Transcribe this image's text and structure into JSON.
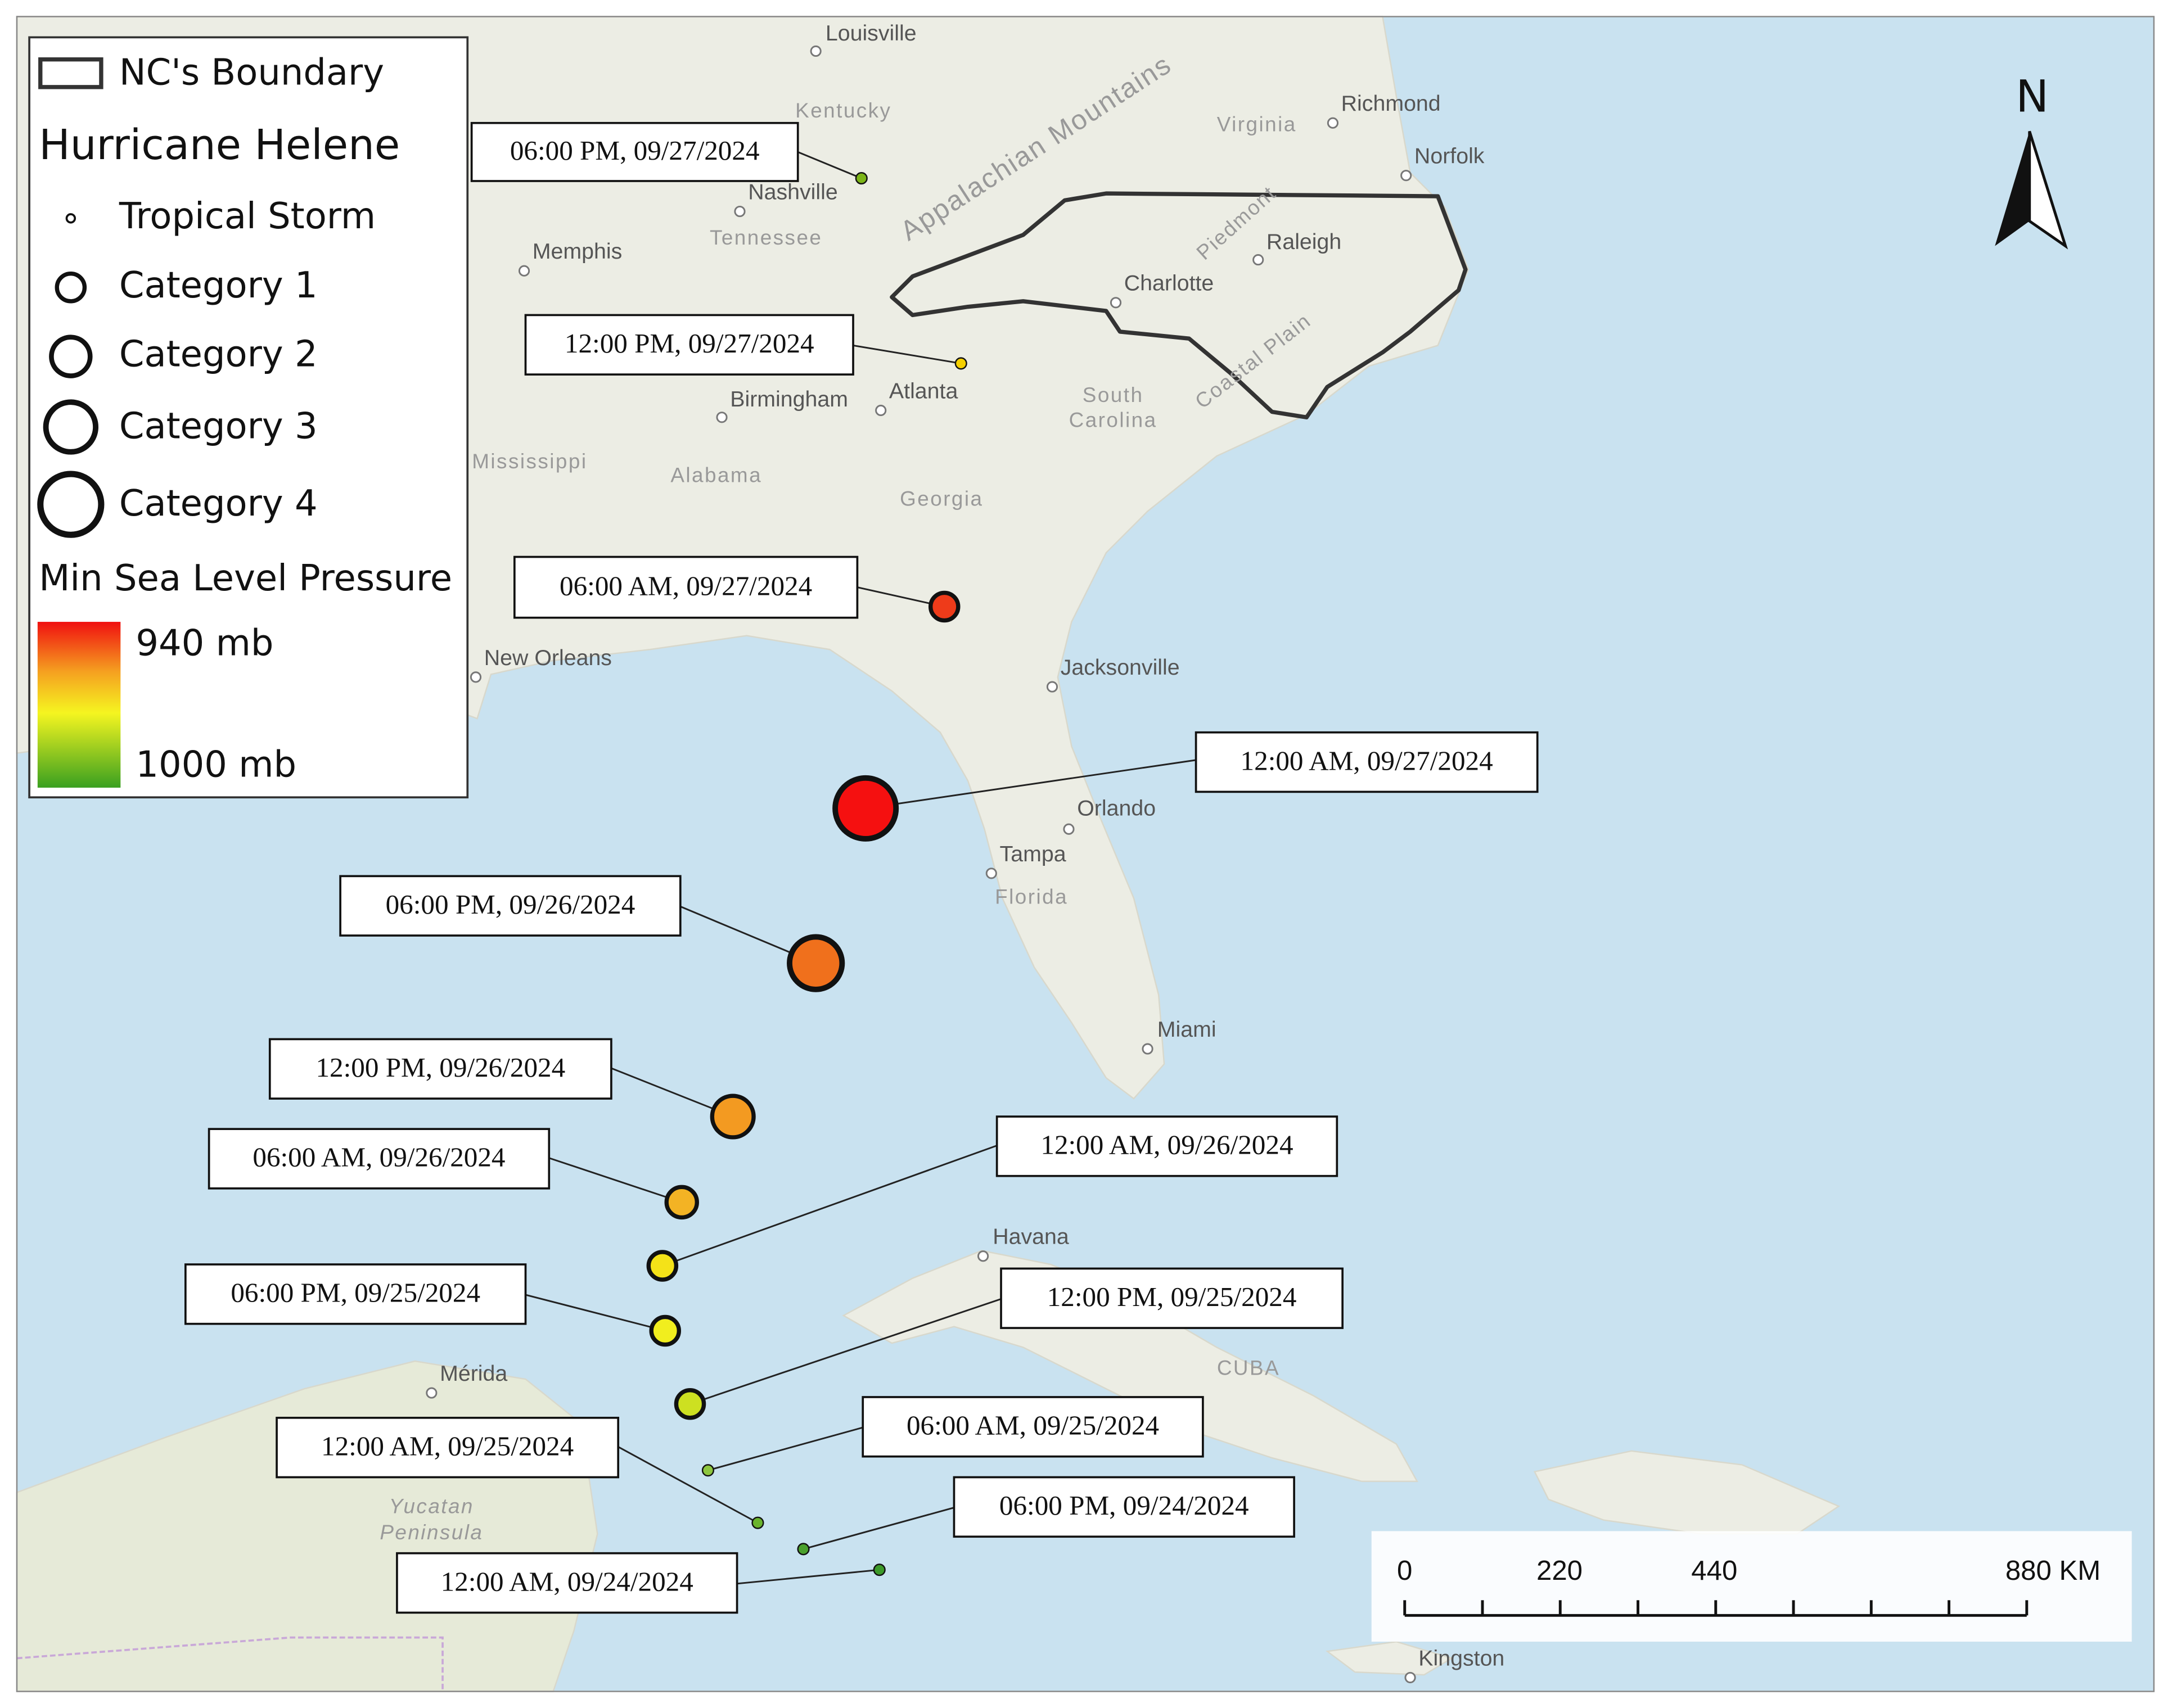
{
  "legend": {
    "boundary": "NC's Boundary",
    "title": "Hurricane Helene",
    "categories": [
      "Tropical Storm",
      "Category 1",
      "Category 2",
      "Category 3",
      "Category 4"
    ],
    "pressure_title": "Min Sea Level Pressure",
    "pressure_high": "940 mb",
    "pressure_low": "1000 mb"
  },
  "north_arrow": "N",
  "track_labels": [
    "06:00 PM, 09/27/2024",
    "12:00 PM, 09/27/2024",
    "06:00 AM, 09/27/2024",
    "12:00 AM, 09/27/2024",
    "06:00 PM, 09/26/2024",
    "12:00 PM, 09/26/2024",
    "06:00 AM, 09/26/2024",
    "12:00 AM, 09/26/2024",
    "06:00 PM, 09/25/2024",
    "12:00 PM, 09/25/2024",
    "06:00 AM, 09/25/2024",
    "12:00 AM, 09/25/2024",
    "06:00 PM, 09/24/2024",
    "12:00 AM, 09/24/2024"
  ],
  "places": [
    "Louisville",
    "Richmond",
    "Norfolk",
    "Nashville",
    "Memphis",
    "Raleigh",
    "Charlotte",
    "Atlanta",
    "Birmingham",
    "New Orleans",
    "Jacksonville",
    "Orlando",
    "Tampa",
    "Miami",
    "Havana",
    "Mérida",
    "Kingston"
  ],
  "regions": [
    "Kentucky",
    "Virginia",
    "Tennessee",
    "South",
    "Carolina",
    "Mississippi",
    "Alabama",
    "Georgia",
    "Florida",
    "CUBA",
    "Yucatan",
    "Peninsula",
    "Appalachian Mountains",
    "Piedmont",
    "Coastal Plain"
  ],
  "scale_bar": [
    "0",
    "220",
    "440",
    "880 KM"
  ]
}
